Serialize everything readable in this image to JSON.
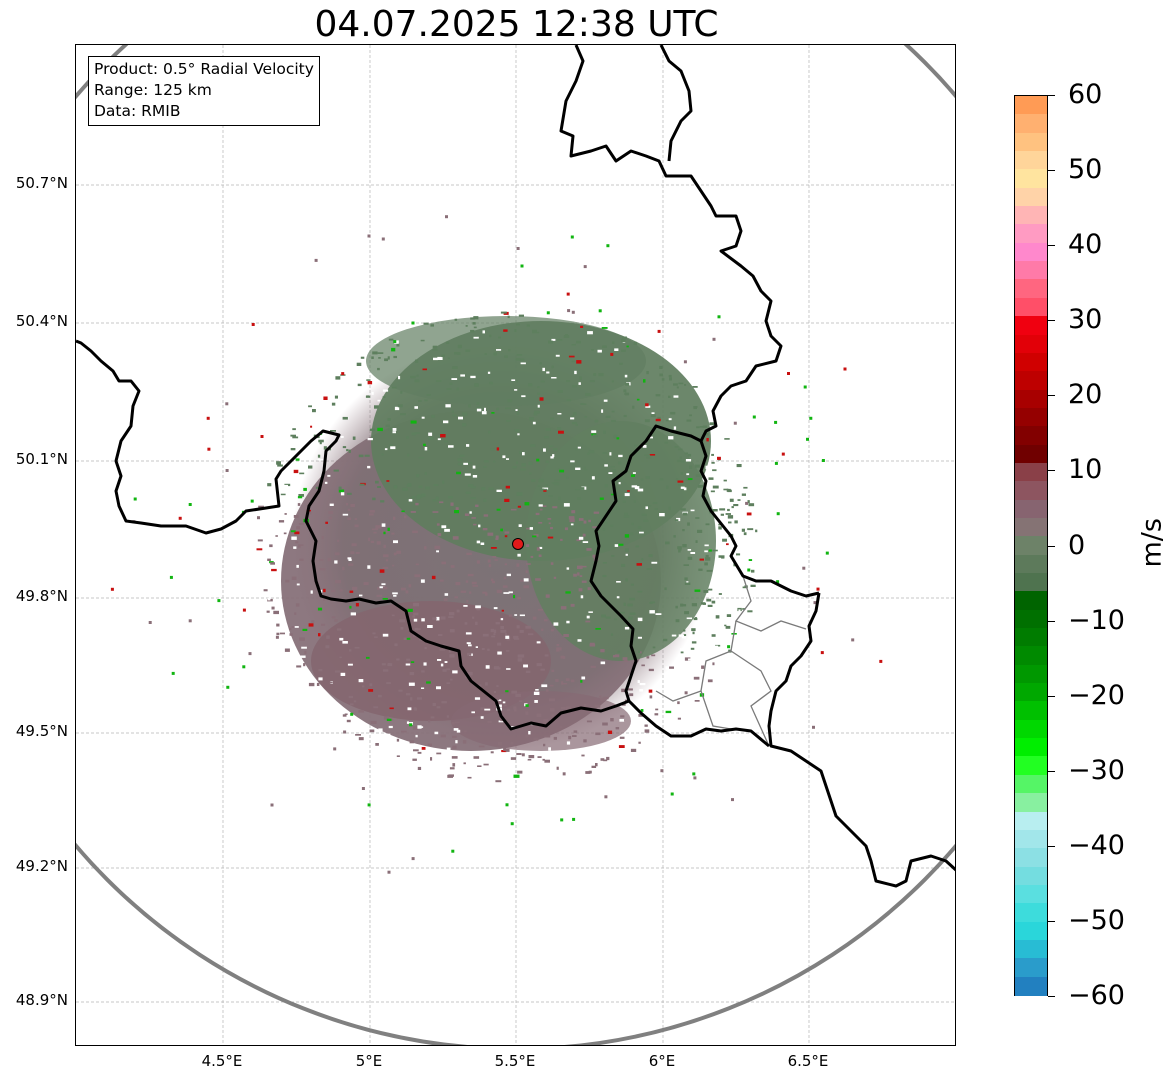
{
  "title": "04.07.2025 12:38 UTC",
  "info_box": {
    "product": "Product: 0.5° Radial Velocity",
    "range": "Range: 125 km",
    "data": "Data: RMIB"
  },
  "map": {
    "lat_labels": [
      "50.7°N",
      "50.4°N",
      "50.1°N",
      "49.8°N",
      "49.5°N",
      "49.2°N",
      "48.9°N"
    ],
    "lon_labels": [
      "4.5°E",
      "5°E",
      "5.5°E",
      "6°E",
      "6.5°E"
    ],
    "radar_site_color": "#e11a1a",
    "range_ring_color": "#808080",
    "border_color": "#000000",
    "echo_colors": {
      "receding_weak": "#8a6f78",
      "approaching_weak": "#5e7f5e",
      "strong_in": "#11b511",
      "strong_out": "#c81010"
    }
  },
  "colorbar": {
    "unit": "m/s",
    "ticks": [
      "60",
      "50",
      "40",
      "30",
      "20",
      "10",
      "0",
      "−10",
      "−20",
      "−30",
      "−40",
      "−50",
      "−60"
    ],
    "colors_top_to_bottom": [
      "#ff9b55",
      "#ffb070",
      "#ffc280",
      "#ffd59a",
      "#ffe49f",
      "#ffd3a8",
      "#ffb5b5",
      "#ff9bc2",
      "#ff88cc",
      "#ff7aa8",
      "#ff6680",
      "#ff4f68",
      "#f00010",
      "#e20008",
      "#d00000",
      "#be0000",
      "#a80000",
      "#950000",
      "#820000",
      "#700000",
      "#8a4048",
      "#8d5560",
      "#876470",
      "#857374",
      "#6d8268",
      "#5d7a5b",
      "#4f734f",
      "#006400",
      "#007000",
      "#007c00",
      "#008a00",
      "#009800",
      "#00a800",
      "#00c000",
      "#00d800",
      "#00ee00",
      "#22ff22",
      "#55f566",
      "#88f0a0",
      "#b8eef0",
      "#a2e6ea",
      "#8ce0e4",
      "#74dde0",
      "#5adfe0",
      "#3ddcdc",
      "#2ad6da",
      "#28bcd4",
      "#2a9ccb",
      "#2280c0"
    ]
  }
}
